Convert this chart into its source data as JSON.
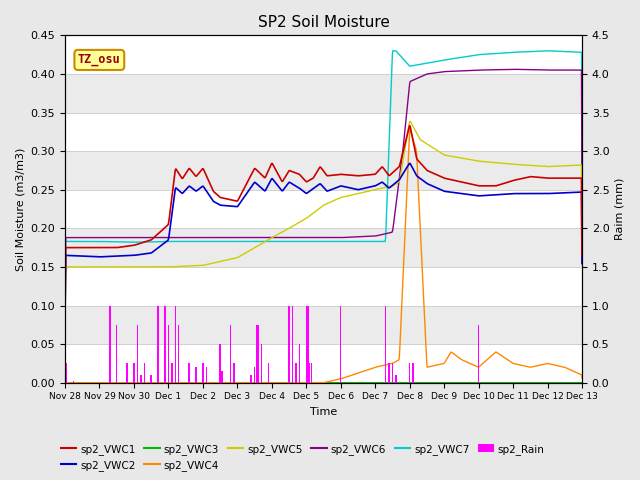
{
  "title": "SP2 Soil Moisture",
  "xlabel": "Time",
  "ylabel_left": "Soil Moisture (m3/m3)",
  "ylabel_right": "Raim (mm)",
  "ylim_left": [
    0.0,
    0.45
  ],
  "ylim_right": [
    0.0,
    4.5
  ],
  "xtick_labels": [
    "Nov 28",
    "Nov 29",
    "Nov 30",
    "Dec 1",
    "Dec 2",
    "Dec 3",
    "Dec 4",
    "Dec 5",
    "Dec 6",
    "Dec 7",
    "Dec 8",
    "Dec 9",
    "Dec 10",
    "Dec 11",
    "Dec 12",
    "Dec 13"
  ],
  "line_colors": {
    "sp2_VWC1": "#cc0000",
    "sp2_VWC2": "#0000cc",
    "sp2_VWC3": "#00bb00",
    "sp2_VWC4": "#ff8800",
    "sp2_VWC5": "#cccc00",
    "sp2_VWC6": "#880088",
    "sp2_VWC7": "#00cccc",
    "sp2_Rain": "#ff00ff"
  },
  "annotation_text": "TZ_osu",
  "annotation_color": "#990000",
  "annotation_bg": "#ffff99",
  "annotation_border": "#cc8800",
  "background_color": "#e8e8e8",
  "plot_bg": "#ffffff",
  "grid_color": "#d0d0d0"
}
